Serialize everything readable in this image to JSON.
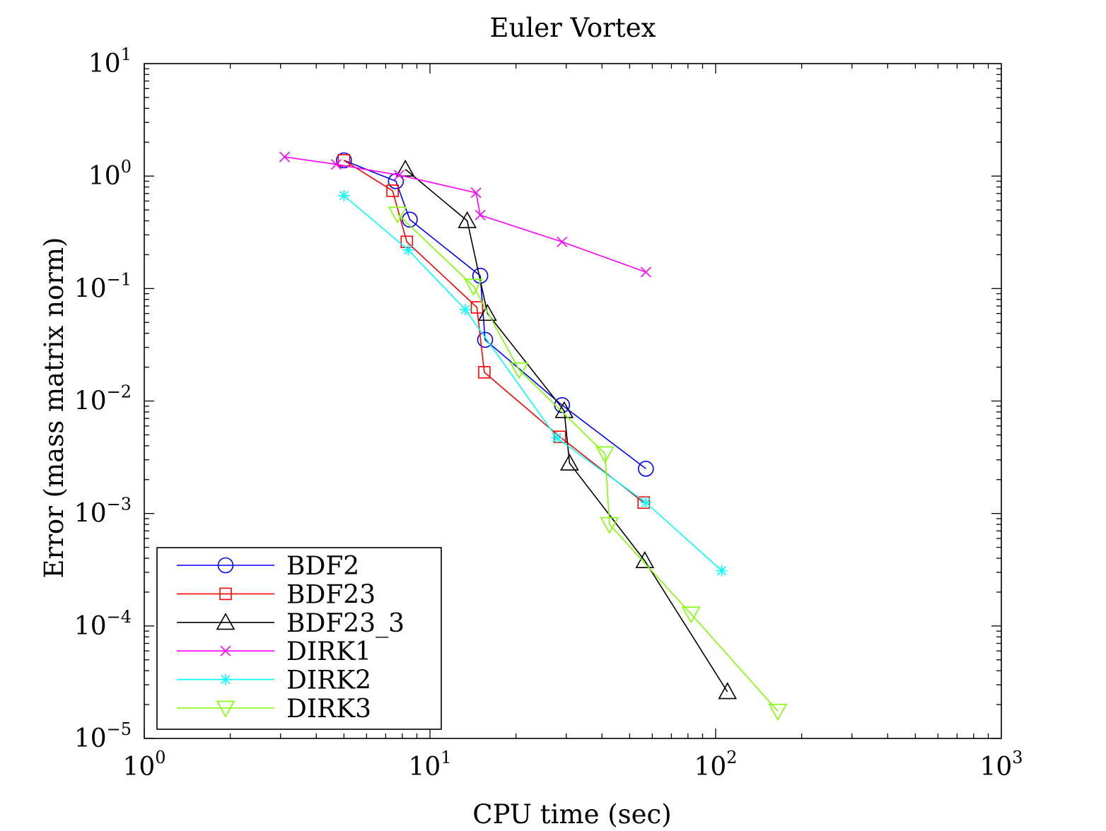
{
  "chart_data": {
    "type": "line",
    "title": "Euler Vortex",
    "xlabel": "CPU time (sec)",
    "ylabel": "Error (mass matrix norm)",
    "xscale": "log",
    "yscale": "log",
    "xlim": [
      1,
      1000
    ],
    "ylim": [
      1e-05,
      10
    ],
    "grid": false,
    "legend_position": "bottom-left",
    "x_ticks": [
      {
        "value": 1,
        "base": "10",
        "exp": "0"
      },
      {
        "value": 10,
        "base": "10",
        "exp": "1"
      },
      {
        "value": 100,
        "base": "10",
        "exp": "2"
      },
      {
        "value": 1000,
        "base": "10",
        "exp": "3"
      }
    ],
    "y_ticks": [
      {
        "value": 10,
        "base": "10",
        "exp": "1"
      },
      {
        "value": 1,
        "base": "10",
        "exp": "0"
      },
      {
        "value": 0.1,
        "base": "10",
        "exp": "−1"
      },
      {
        "value": 0.01,
        "base": "10",
        "exp": "−2"
      },
      {
        "value": 0.001,
        "base": "10",
        "exp": "−3"
      },
      {
        "value": 0.0001,
        "base": "10",
        "exp": "−4"
      },
      {
        "value": 1e-05,
        "base": "10",
        "exp": "−5"
      }
    ],
    "series": [
      {
        "name": "BDF2",
        "color": "#0000ff",
        "marker": "circle",
        "x": [
          5.0,
          7.6,
          8.5,
          15.0,
          15.6,
          29.0,
          57.0
        ],
        "y": [
          1.38,
          0.9,
          0.41,
          0.13,
          0.035,
          0.0092,
          0.0025
        ]
      },
      {
        "name": "BDF23",
        "color": "#ff0000",
        "marker": "square",
        "x": [
          5.0,
          7.4,
          8.3,
          14.6,
          15.5,
          28.5,
          56.0
        ],
        "y": [
          1.38,
          0.74,
          0.26,
          0.068,
          0.018,
          0.0048,
          0.00125
        ]
      },
      {
        "name": "BDF23_3",
        "color": "#000000",
        "marker": "triangle-up",
        "x": [
          8.2,
          13.5,
          15.9,
          29.5,
          30.8,
          56.5,
          110.0
        ],
        "y": [
          1.15,
          0.4,
          0.06,
          0.0082,
          0.0028,
          0.00038,
          2.6e-05
        ]
      },
      {
        "name": "DIRK1",
        "color": "#ff00ff",
        "marker": "x",
        "x": [
          3.1,
          4.7,
          7.8,
          14.5,
          15.0,
          29.0,
          57.0
        ],
        "y": [
          1.48,
          1.27,
          1.02,
          0.71,
          0.45,
          0.26,
          0.14
        ]
      },
      {
        "name": "DIRK2",
        "color": "#00ffff",
        "marker": "asterisk",
        "x": [
          5.0,
          8.4,
          13.3,
          27.8,
          57.0,
          105.0
        ],
        "y": [
          0.67,
          0.22,
          0.065,
          0.0047,
          0.00125,
          0.00031
        ]
      },
      {
        "name": "DIRK3",
        "color": "#80ff00",
        "marker": "triangle-down",
        "x": [
          7.7,
          14.2,
          20.5,
          41.0,
          42.5,
          82.0,
          165.0
        ],
        "y": [
          0.46,
          0.105,
          0.019,
          0.0034,
          0.0008,
          0.000128,
          1.75e-05
        ]
      }
    ]
  }
}
